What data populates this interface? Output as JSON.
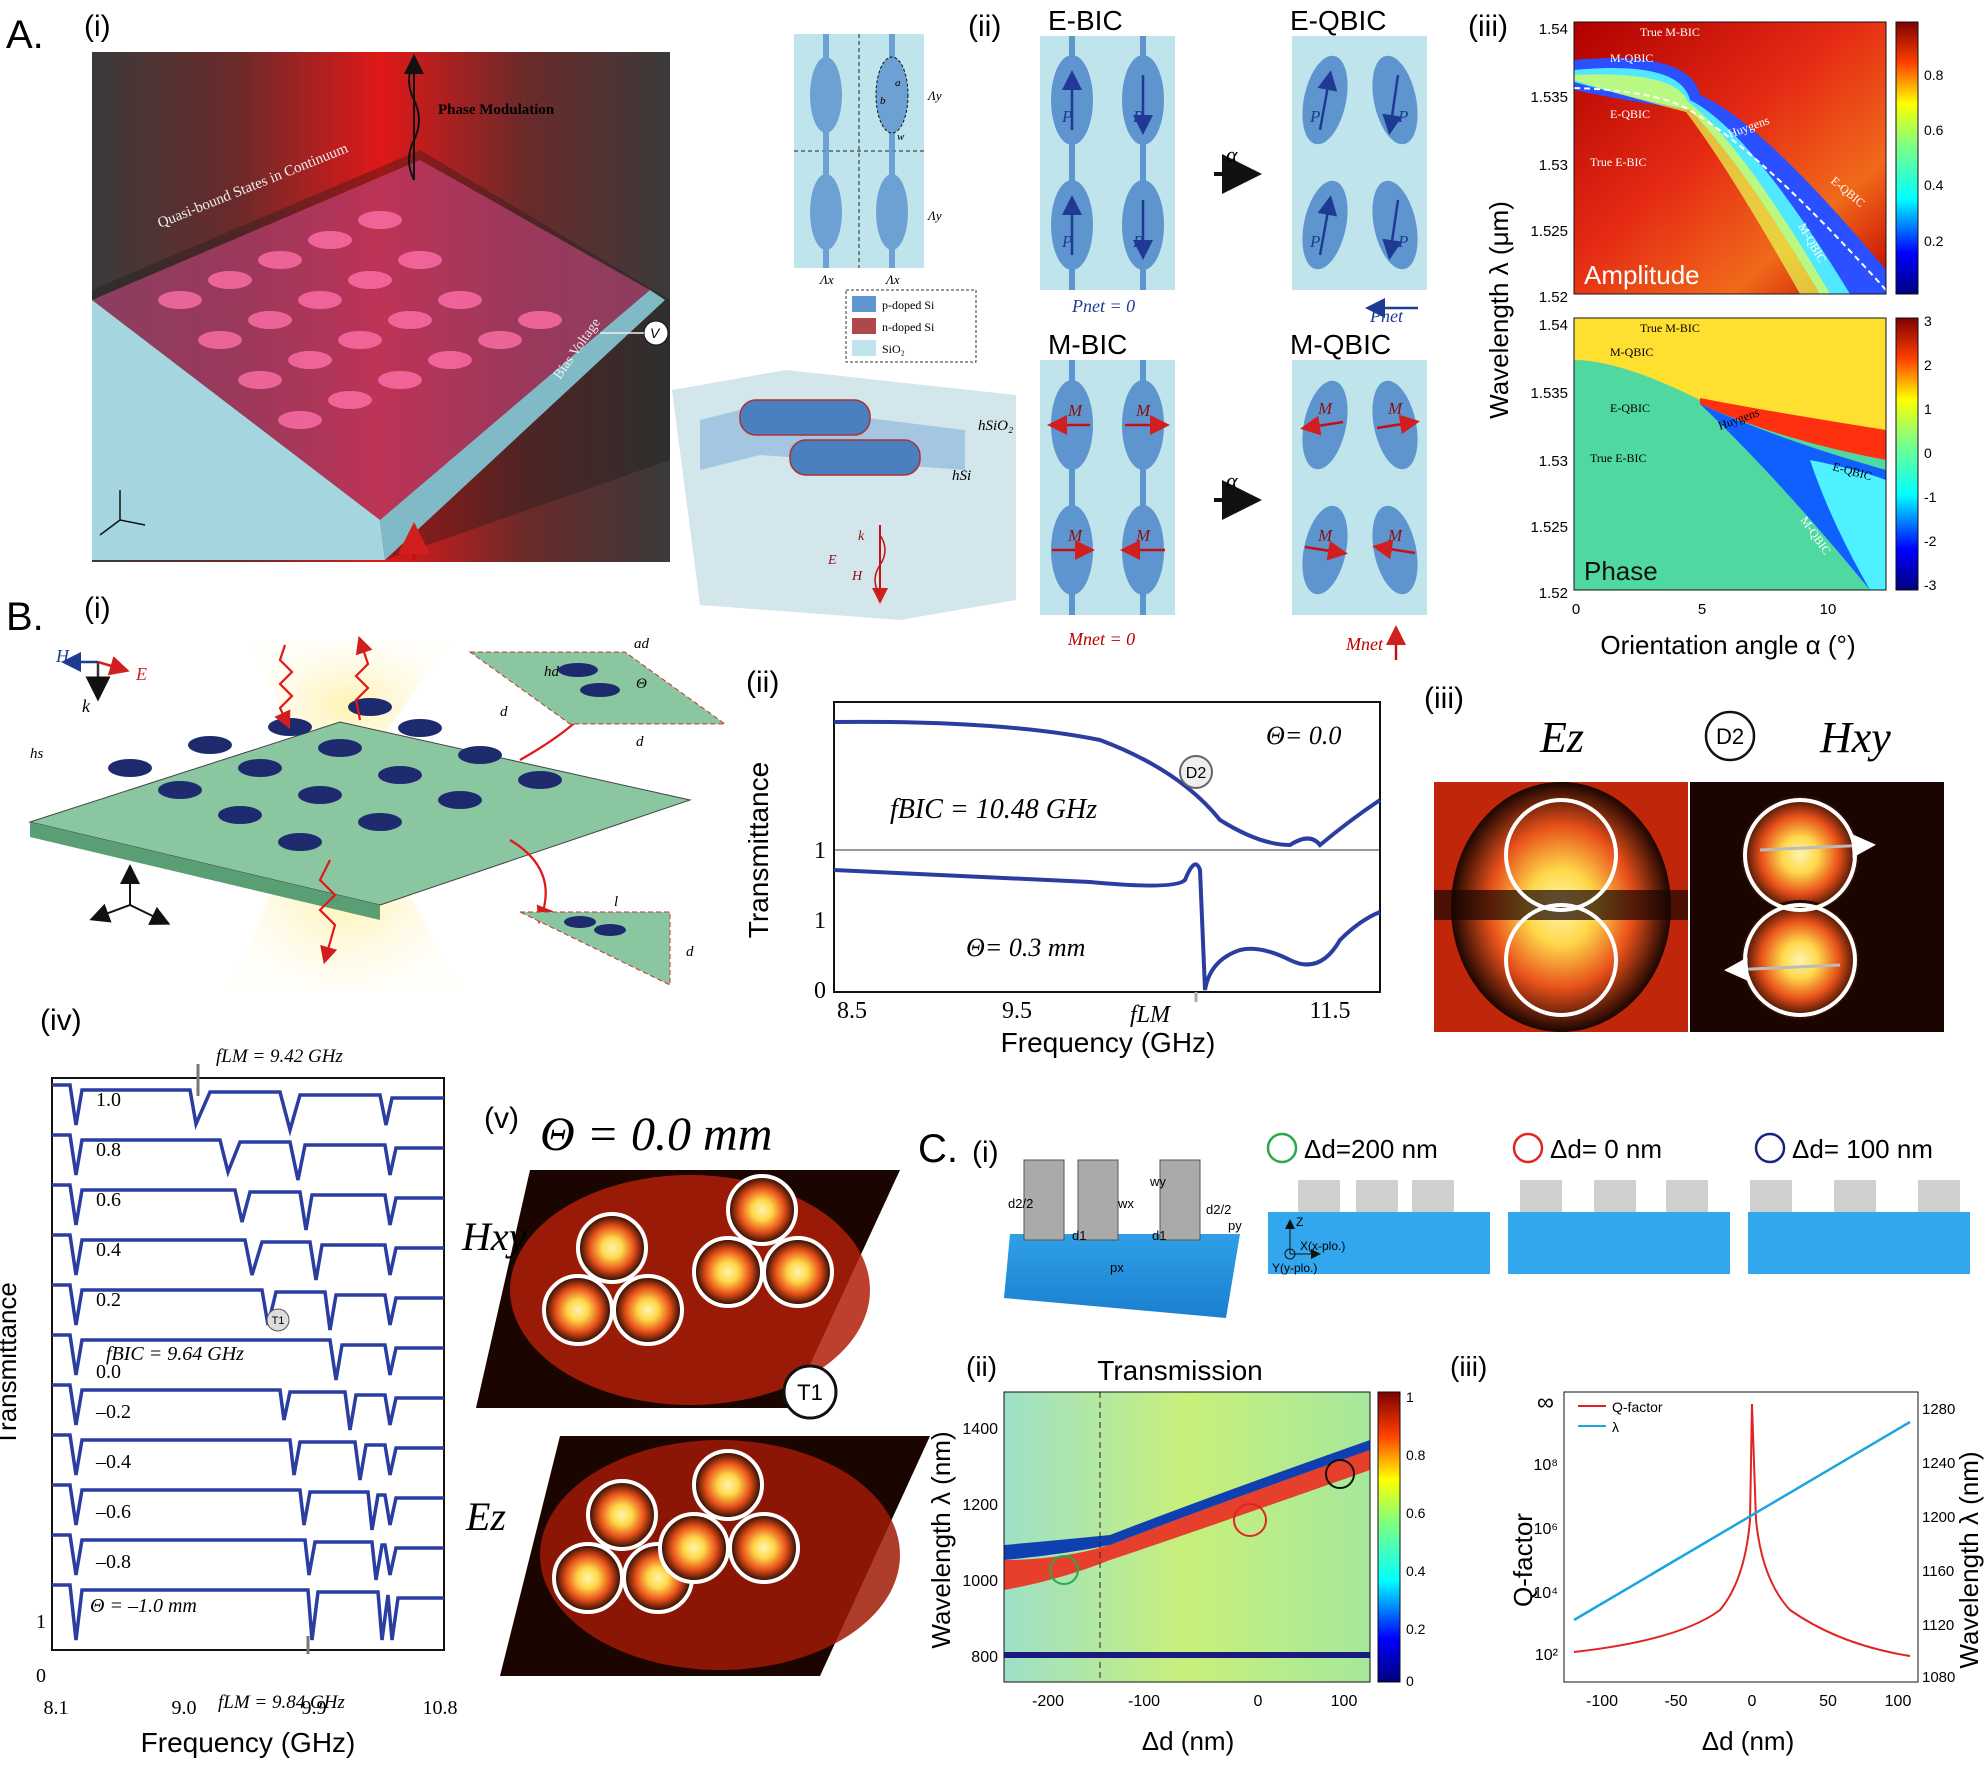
{
  "colors": {
    "navy": "#1f3a93",
    "red": "#d11f1f",
    "cyan": "#a8dde8",
    "paleBlue": "#bfe4ec",
    "ellipse": "#5f95cf",
    "qfactor": "#e02424",
    "lambda": "#19a6e0"
  },
  "panelA": {
    "label": "A.",
    "i": {
      "tag": "(i)",
      "phase": "Phase Modulation",
      "qbic": "Quasi-bound States in Continuum",
      "bias": "Bias Voltage",
      "v": "V"
    },
    "unitcell": {
      "ly1": "Λy",
      "ly2": "Λy",
      "lx1": "Λx",
      "lx2": "Λx",
      "a": "a",
      "b": "b",
      "w": "w"
    },
    "legend": [
      "p-doped Si",
      "n-doped Si",
      "SiO₂"
    ],
    "stack": {
      "hsio2": "hSiO₂",
      "hsi": "hSi",
      "k": "k",
      "e": "E",
      "h": "H"
    },
    "ii": {
      "tag": "(ii)",
      "ebic": "E-BIC",
      "eqbic": "E-QBIC",
      "mbic": "M-BIC",
      "mqbic": "M-QBIC",
      "P": "P",
      "M": "M",
      "pnet0": "Pnet = 0",
      "pnet": "Pnet",
      "mnet0": "Mnet = 0",
      "mnet": "Mnet",
      "alpha": "α"
    },
    "iii": {
      "tag": "(iii)",
      "ylabel": "Wavelength λ (μm)",
      "xlabel": "Orientation angle α (°)",
      "yticks": [
        "1.54",
        "1.535",
        "1.53",
        "1.525",
        "1.52"
      ],
      "xticks": [
        "0",
        "5",
        "10"
      ],
      "amp": "Amplitude",
      "phase": "Phase",
      "ann": [
        "True M-BIC",
        "M-QBIC",
        "E-QBIC",
        "True E-BIC",
        "Huygens",
        "E-QBIC",
        "M-QBIC"
      ],
      "cbarAmp": [
        "0.8",
        "0.6",
        "0.4",
        "0.2"
      ],
      "cbarPhase": [
        "3",
        "2",
        "1",
        "0",
        "-1",
        "-2",
        "-3"
      ]
    }
  },
  "panelB": {
    "label": "B.",
    "i": {
      "tag": "(i)",
      "H": "H",
      "k": "k",
      "E": "E",
      "hs": "hs",
      "ad": "ad",
      "hd": "hd",
      "theta": "Θ",
      "d1": "d",
      "d2": "d",
      "d3": "d",
      "l": "l"
    },
    "ii": {
      "tag": "(ii)",
      "ylabel": "Transmittance",
      "xlabel": "Frequency (GHz)",
      "xticks": [
        "8.5",
        "9.5",
        "fLM",
        "11.5"
      ],
      "yticks": [
        "1",
        "0",
        "1"
      ],
      "theta0": "Θ= 0.0",
      "fbic": "fBIC = 10.48 GHz",
      "theta03": "Θ= 0.3 mm",
      "d2": "D2"
    },
    "iii": {
      "tag": "(iii)",
      "ez": "Ez",
      "hxy": "Hxy",
      "d2": "D2"
    },
    "iv": {
      "tag": "(iv)",
      "ylabel": "Transmittance",
      "xlabel": "Frequency (GHz)",
      "xticks": [
        "8.1",
        "9.0",
        "9.9",
        "10.8"
      ],
      "flmTop": "fLM = 9.42 GHz",
      "flmBot": "fLM = 9.84 GHz",
      "fbic": "fBIC = 9.64 GHz",
      "t1": "T1",
      "curves": [
        "1.0",
        "0.8",
        "0.6",
        "0.4",
        "0.2",
        "0.0",
        "–0.2",
        "–0.4",
        "–0.6",
        "–0.8",
        "Θ = –1.0 mm"
      ],
      "yticks": [
        "1",
        "0"
      ]
    },
    "v": {
      "tag": "(v)",
      "title": "Θ = 0.0 mm",
      "hxy": "Hxy",
      "ez": "Ez",
      "t1": "T1"
    }
  },
  "panelC": {
    "label": "C.",
    "i": {
      "tag": "(i)",
      "dims": [
        "d2/2",
        "d1",
        "wx",
        "d1",
        "d2/2",
        "wy",
        "py",
        "px"
      ],
      "d200": "Δd=200 nm",
      "d0": "Δd= 0 nm",
      "d100": "Δd= 100 nm",
      "axes": [
        "Z",
        "X(x-plo.)",
        "Y(y-plo.)"
      ]
    },
    "ii": {
      "tag": "(ii)",
      "title": "Transmission",
      "ylabel": "Wavelength λ (nm)",
      "xlabel": "Δd (nm)",
      "yticks": [
        "1400",
        "1200",
        "1000",
        "800"
      ],
      "xticks": [
        "-200",
        "-100",
        "0",
        "100"
      ],
      "cbar": [
        "1",
        "0.8",
        "0.6",
        "0.4",
        "0.2",
        "0"
      ]
    },
    "iii": {
      "tag": "(iii)",
      "ylabel": "Q-factor",
      "ylabel2": "Wavelength λ (nm)",
      "xlabel": "Δd (nm)",
      "legend": [
        "Q-factor",
        "λ"
      ],
      "inf": "∞",
      "yticks": [
        "10⁸",
        "10⁶",
        "10⁴",
        "10²"
      ],
      "y2ticks": [
        "1280",
        "1240",
        "1200",
        "1160",
        "1120",
        "1080"
      ],
      "xticks": [
        "-100",
        "-50",
        "0",
        "50",
        "100"
      ]
    }
  }
}
